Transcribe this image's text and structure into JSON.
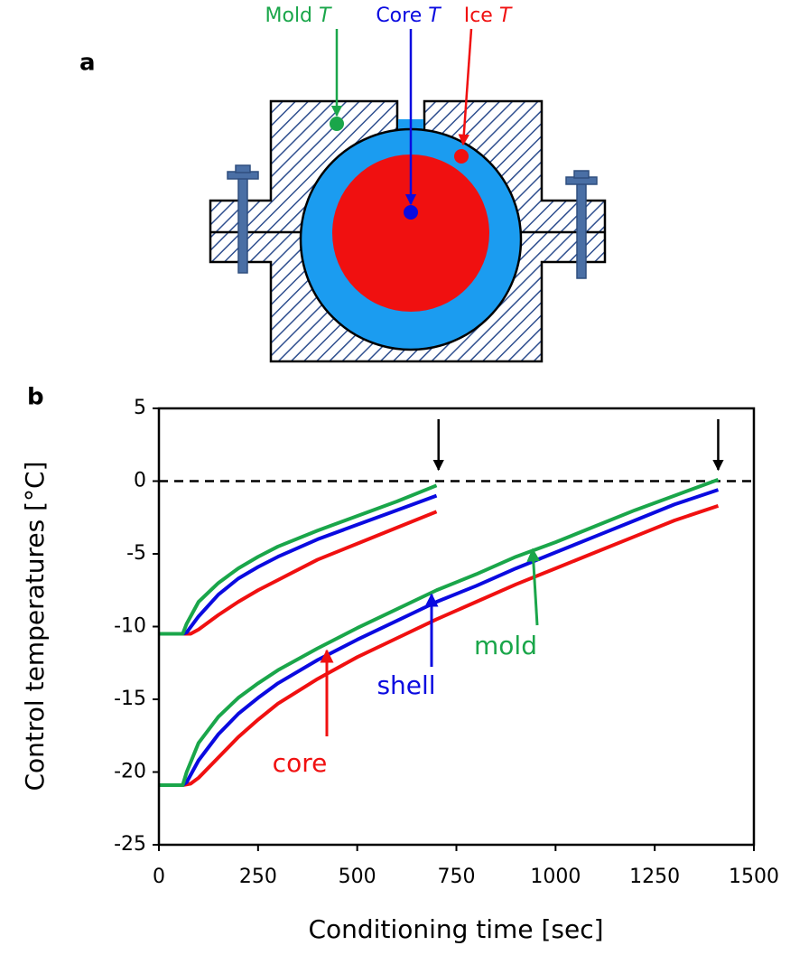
{
  "diagram": {
    "panel_label": "a",
    "labels": [
      {
        "name": "Mold",
        "symbol": "T",
        "color": "#1aa64a"
      },
      {
        "name": "Core",
        "symbol": "T",
        "color": "#0a0ae0"
      },
      {
        "name": "Ice",
        "symbol": "T",
        "color": "#f01010"
      }
    ]
  },
  "chart_data": {
    "type": "line",
    "panel_label": "b",
    "xlabel": "Conditioning time [sec]",
    "ylabel": "Control  temperatures [°C]",
    "xlim": [
      0,
      1500
    ],
    "xticks": [
      0,
      250,
      500,
      750,
      1000,
      1250,
      1500
    ],
    "ylim": [
      -25,
      5
    ],
    "yticks": [
      -25,
      -20,
      -15,
      -10,
      -5,
      0,
      5
    ],
    "reference_line": 0,
    "event_markers": [
      705,
      1410
    ],
    "series": [
      {
        "color": "#1aa64a",
        "x": [
          0,
          60,
          70,
          100,
          150,
          200,
          250,
          300,
          400,
          500,
          600,
          700
        ],
        "values": [
          -10.5,
          -10.5,
          -9.8,
          -8.3,
          -7,
          -6,
          -5.2,
          -4.5,
          -3.4,
          -2.4,
          -1.4,
          -0.3
        ]
      },
      {
        "color": "#0a0ae0",
        "x": [
          0,
          60,
          70,
          100,
          150,
          200,
          250,
          300,
          400,
          500,
          600,
          700
        ],
        "values": [
          -10.5,
          -10.5,
          -10.4,
          -9.3,
          -7.8,
          -6.7,
          -5.9,
          -5.2,
          -4,
          -3,
          -2,
          -1
        ]
      },
      {
        "color": "#f01010",
        "x": [
          0,
          60,
          80,
          100,
          150,
          200,
          250,
          300,
          400,
          500,
          600,
          700
        ],
        "values": [
          -10.5,
          -10.5,
          -10.5,
          -10.2,
          -9.2,
          -8.3,
          -7.5,
          -6.8,
          -5.4,
          -4.3,
          -3.2,
          -2.1
        ]
      },
      {
        "color": "#1aa64a",
        "x": [
          0,
          60,
          70,
          100,
          150,
          200,
          250,
          300,
          400,
          500,
          600,
          700,
          800,
          900,
          1000,
          1100,
          1200,
          1300,
          1410
        ],
        "values": [
          -20.9,
          -20.9,
          -20,
          -18,
          -16.2,
          -14.9,
          -13.9,
          -13,
          -11.5,
          -10.1,
          -8.8,
          -7.5,
          -6.4,
          -5.2,
          -4.2,
          -3.1,
          -2,
          -1,
          0.1
        ]
      },
      {
        "color": "#0a0ae0",
        "x": [
          0,
          60,
          70,
          100,
          150,
          200,
          250,
          300,
          400,
          500,
          600,
          700,
          800,
          900,
          1000,
          1100,
          1200,
          1300,
          1410
        ],
        "values": [
          -20.9,
          -20.9,
          -20.7,
          -19.2,
          -17.4,
          -16,
          -14.9,
          -13.9,
          -12.3,
          -10.9,
          -9.6,
          -8.3,
          -7.2,
          -6,
          -4.9,
          -3.8,
          -2.7,
          -1.6,
          -0.6
        ]
      },
      {
        "color": "#f01010",
        "x": [
          0,
          60,
          80,
          100,
          150,
          200,
          250,
          300,
          400,
          500,
          600,
          700,
          800,
          900,
          1000,
          1100,
          1200,
          1300,
          1410
        ],
        "values": [
          -20.9,
          -20.9,
          -20.8,
          -20.4,
          -19,
          -17.6,
          -16.4,
          -15.3,
          -13.6,
          -12.1,
          -10.8,
          -9.5,
          -8.3,
          -7.1,
          -6,
          -4.9,
          -3.8,
          -2.7,
          -1.7
        ]
      }
    ],
    "annotations": [
      {
        "text": "mold",
        "color": "#1aa64a"
      },
      {
        "text": "shell",
        "color": "#0a0ae0"
      },
      {
        "text": "core",
        "color": "#f01010"
      }
    ]
  }
}
